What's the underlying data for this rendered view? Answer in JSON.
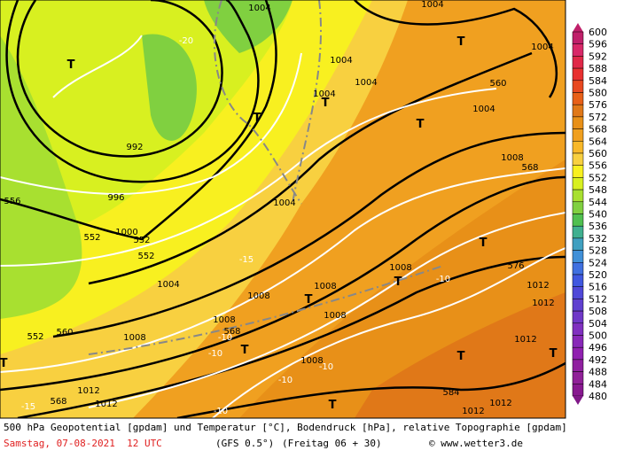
{
  "footer": {
    "line1": "500 hPa Geopotential [gpdam] und Temperatur [°C], Bodendruck [hPa], relative Topographie [gpdam]",
    "date": "Samstag, 07-08-2021  12 UTC",
    "model": "(GFS 0.5°)",
    "run": "(Freitag 06 + 30)",
    "site": "© www.wetter3.de"
  },
  "colorbar": {
    "levels": [
      600,
      596,
      592,
      588,
      584,
      580,
      576,
      572,
      568,
      564,
      560,
      556,
      552,
      548,
      544,
      540,
      536,
      532,
      528,
      524,
      520,
      516,
      512,
      508,
      504,
      500,
      496,
      492,
      488,
      484,
      480
    ],
    "colors": [
      "#c0206a",
      "#d82868",
      "#e02848",
      "#e83030",
      "#e84820",
      "#e86018",
      "#e07818",
      "#e89018",
      "#f0a020",
      "#f8b828",
      "#f8d040",
      "#f8f020",
      "#d8f020",
      "#a8e030",
      "#80d040",
      "#50c050",
      "#40b090",
      "#40a0c0",
      "#4090d8",
      "#4070e0",
      "#4058e0",
      "#5048d8",
      "#6040d0",
      "#7038c8",
      "#8030c0",
      "#8828b8",
      "#9020b0",
      "#9020a0",
      "#902098",
      "#881890",
      "#801888"
    ]
  },
  "map_labels": [
    "1004",
    "1004",
    "-20",
    "1004",
    "1004",
    "1004",
    "T",
    "T",
    "1004",
    "560",
    "T",
    "T",
    "1004",
    "T",
    "992",
    "1008",
    "568",
    "556",
    "996",
    "1004",
    "1000",
    "552",
    "552",
    "552",
    "T",
    "-15",
    "1004",
    "1008",
    "576",
    "-10",
    "T",
    "1012",
    "1008",
    "1008",
    "T",
    "1012",
    "1008",
    "1008",
    "568",
    "560",
    "1008",
    "552",
    "-10",
    "T",
    "-10",
    "1012",
    "T",
    "T",
    "T",
    "1008",
    "-10",
    "-10",
    "1012",
    "584",
    "568",
    "1012",
    "T",
    "-15",
    "-10",
    "1012",
    "1012"
  ]
}
